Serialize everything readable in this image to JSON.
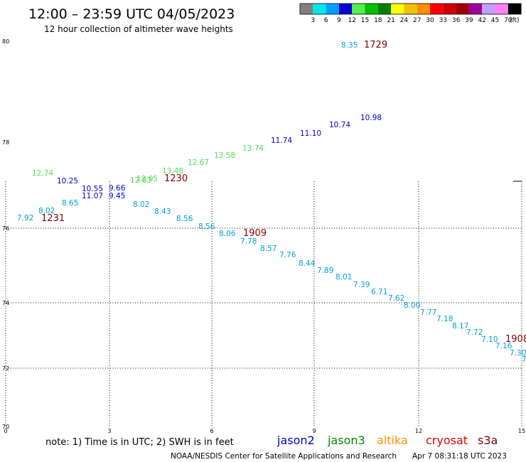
{
  "header": {
    "title": "12:00 – 23:59 UTC 04/05/2023",
    "subtitle": "12 hour collection of altimeter wave heights"
  },
  "colorbar": {
    "colors": [
      "#808080",
      "#00e8e8",
      "#00a0ff",
      "#0000d0",
      "#50f050",
      "#00c000",
      "#008000",
      "#ffff00",
      "#f0c000",
      "#ff9000",
      "#ff0000",
      "#d00000",
      "#a00000",
      "#a000a0",
      "#c0a0ff",
      "#ff80ff",
      "#000000"
    ],
    "labels": [
      "3",
      "6",
      "9",
      "12",
      "15",
      "18",
      "21",
      "24",
      "27",
      "30",
      "33",
      "36",
      "39",
      "42",
      "45",
      "70"
    ],
    "unit": "(ft)"
  },
  "map": {
    "lat_labels": [
      "80",
      "78",
      "76",
      "74",
      "72",
      "70"
    ],
    "lon_labels": [
      "0",
      "3",
      "6",
      "9",
      "12",
      "15"
    ]
  },
  "colors": {
    "jason2": "#0000c8",
    "jason3": "#008c00",
    "altika": "#ff9000",
    "cryosat": "#e00000",
    "s3a": "#800000",
    "pass_cyan": "#00a0d0",
    "pass_green": "#50e050",
    "pass_blue": "#0000d0",
    "pass_id": "#800000",
    "grid": "#000000"
  },
  "observations": [
    {
      "text": "8.35",
      "color": "cyan"
    },
    {
      "text": "1729",
      "color": "id"
    },
    {
      "text": "10.98",
      "color": "blue"
    },
    {
      "text": "10.74",
      "color": "blue"
    },
    {
      "text": "11.10",
      "color": "blue"
    },
    {
      "text": "11.74",
      "color": "blue"
    },
    {
      "text": "13.74",
      "color": "green"
    },
    {
      "text": "13.58",
      "color": "green"
    },
    {
      "text": "12.67",
      "color": "green"
    },
    {
      "text": "13.48",
      "color": "green"
    },
    {
      "text": "12.95",
      "color": "green"
    },
    {
      "text": "12.83",
      "color": "green"
    },
    {
      "text": "1230",
      "color": "id"
    },
    {
      "text": "12.74",
      "color": "green"
    },
    {
      "text": "10.25",
      "color": "blue"
    },
    {
      "text": "10.55",
      "color": "blue"
    },
    {
      "text": "9.66",
      "color": "blue"
    },
    {
      "text": "11.07",
      "color": "blue"
    },
    {
      "text": "9.45",
      "color": "blue"
    },
    {
      "text": "8.65",
      "color": "cyan"
    },
    {
      "text": "8.02",
      "color": "cyan"
    },
    {
      "text": "7.92",
      "color": "cyan"
    },
    {
      "text": "1231",
      "color": "id"
    },
    {
      "text": "8.02",
      "color": "cyan"
    },
    {
      "text": "8.43",
      "color": "cyan"
    },
    {
      "text": "8.56",
      "color": "cyan"
    },
    {
      "text": "8.56",
      "color": "cyan"
    },
    {
      "text": "8.06",
      "color": "cyan"
    },
    {
      "text": "1909",
      "color": "id"
    },
    {
      "text": "7.78",
      "color": "cyan"
    },
    {
      "text": "8.57",
      "color": "cyan"
    },
    {
      "text": "7.76",
      "color": "cyan"
    },
    {
      "text": "8.44",
      "color": "cyan"
    },
    {
      "text": "7.89",
      "color": "cyan"
    },
    {
      "text": "8.01",
      "color": "cyan"
    },
    {
      "text": "7.39",
      "color": "cyan"
    },
    {
      "text": "6.71",
      "color": "cyan"
    },
    {
      "text": "7.62",
      "color": "cyan"
    },
    {
      "text": "8.00",
      "color": "cyan"
    },
    {
      "text": "7.77",
      "color": "cyan"
    },
    {
      "text": "7.18",
      "color": "cyan"
    },
    {
      "text": "8.17",
      "color": "cyan"
    },
    {
      "text": "7.72",
      "color": "cyan"
    },
    {
      "text": "7.10",
      "color": "cyan"
    },
    {
      "text": "1908",
      "color": "id"
    },
    {
      "text": "7.16",
      "color": "cyan"
    },
    {
      "text": "7.30",
      "color": "cyan"
    },
    {
      "text": "7",
      "color": "cyan"
    }
  ],
  "legend": {
    "note": "note: 1) Time is in UTC; 2) SWH is in feet",
    "jason2": "jason2",
    "jason3": "jason3",
    "altika": "altika",
    "cryosat": "cryosat",
    "s3a": "s3a"
  },
  "footer": {
    "credit": "NOAA/NESDIS Center for Satellite Applications and Research",
    "timestamp": "Apr  7 08:31:18 UTC 2023"
  }
}
